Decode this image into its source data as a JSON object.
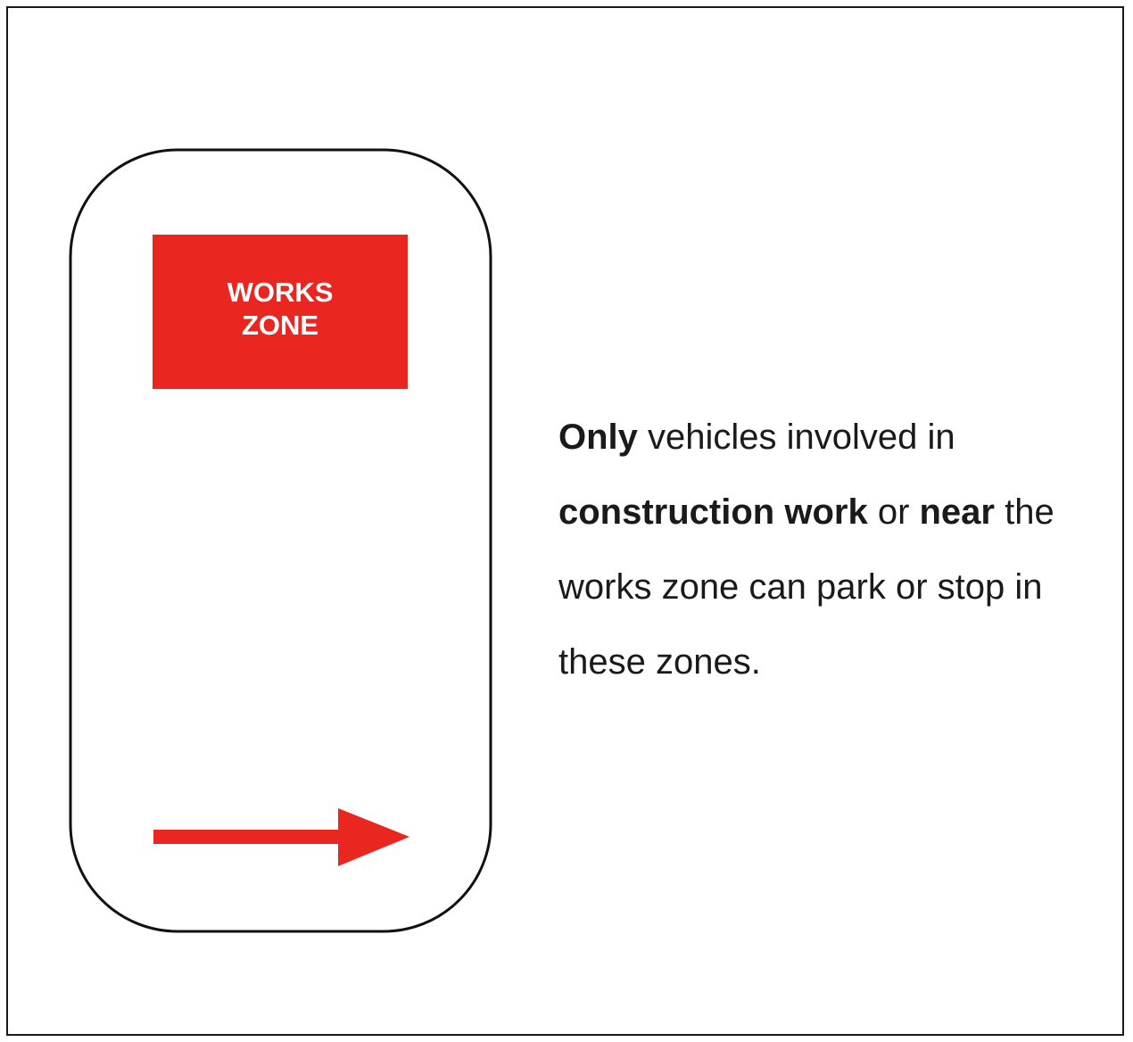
{
  "sign": {
    "label_line1": "WORKS",
    "label_line2": "ZONE",
    "panel_color": "#ea2620",
    "arrow_color": "#ea2620",
    "arrow_direction": "right"
  },
  "description": {
    "part1_bold": "Only",
    "part2": " vehicles involved in ",
    "part3_bold": "construction work",
    "part4": " or ",
    "part5_bold": "near",
    "part6": " the works zone can park or stop in these zones."
  }
}
